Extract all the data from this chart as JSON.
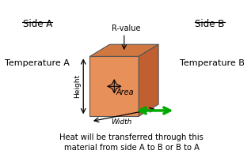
{
  "bg_color": "#ffffff",
  "box_face_color": "#E8905A",
  "box_top_color": "#D07840",
  "box_right_color": "#C06030",
  "side_a_label": "Side A",
  "side_b_label": "Side B",
  "temp_a_label": "Temperature A",
  "temp_b_label": "Temperature B",
  "rvalue_label": "R-value",
  "height_label": "Height",
  "width_label": "Width",
  "area_label": "Area",
  "bottom_text_line1": "Heat will be transferred through this",
  "bottom_text_line2": "material from side A to B or B to A",
  "font_size_labels": 8,
  "font_size_bottom": 7.2,
  "font_size_side": 8.5,
  "green_arrow_color": "#00AA00",
  "arrow_color": "#000000"
}
